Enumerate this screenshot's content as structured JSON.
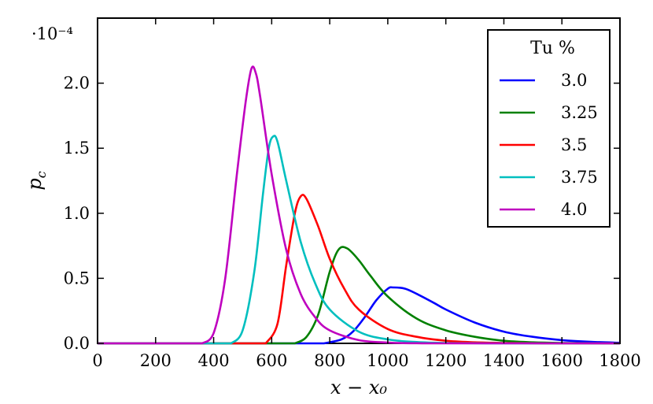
{
  "chart_data": {
    "type": "line",
    "xlabel": "x − x₀",
    "ylabel": "p_c",
    "y_scale_label": "·10⁻⁴",
    "xlim": [
      0,
      1800
    ],
    "ylim": [
      0,
      2.5
    ],
    "xticks": [
      0,
      200,
      400,
      600,
      800,
      1000,
      1200,
      1400,
      1600,
      1800
    ],
    "yticks": [
      0.0,
      0.5,
      1.0,
      1.5,
      2.0
    ],
    "ytick_labels": [
      "0.0",
      "0.5",
      "1.0",
      "1.5",
      "2.0"
    ],
    "grid": false,
    "legend": {
      "title": "Tu %",
      "placement": "top-right"
    },
    "series": [
      {
        "name": "3.0",
        "color": "#0000ff",
        "x": [
          780,
          840,
          880,
          920,
          960,
          1000,
          1020,
          1060,
          1100,
          1160,
          1200,
          1300,
          1400,
          1500,
          1600,
          1700,
          1800
        ],
        "y": [
          0.0,
          0.03,
          0.09,
          0.2,
          0.33,
          0.42,
          0.43,
          0.42,
          0.38,
          0.31,
          0.26,
          0.16,
          0.09,
          0.05,
          0.025,
          0.012,
          0.005
        ]
      },
      {
        "name": "3.25",
        "color": "#008000",
        "x": [
          680,
          720,
          760,
          800,
          830,
          860,
          900,
          940,
          1000,
          1100,
          1200,
          1300,
          1400,
          1500,
          1600,
          1700,
          1800
        ],
        "y": [
          0.0,
          0.05,
          0.22,
          0.55,
          0.72,
          0.73,
          0.64,
          0.52,
          0.36,
          0.19,
          0.1,
          0.05,
          0.02,
          0.008,
          0.003,
          0.001,
          0.0
        ]
      },
      {
        "name": "3.5",
        "color": "#ff0000",
        "x": [
          580,
          620,
          650,
          680,
          700,
          720,
          760,
          800,
          850,
          900,
          1000,
          1100,
          1200,
          1300,
          1400,
          1500,
          1600
        ],
        "y": [
          0.0,
          0.15,
          0.6,
          1.0,
          1.13,
          1.11,
          0.9,
          0.65,
          0.42,
          0.26,
          0.11,
          0.05,
          0.02,
          0.008,
          0.003,
          0.001,
          0.0
        ]
      },
      {
        "name": "3.75",
        "color": "#00bfbf",
        "x": [
          460,
          500,
          540,
          570,
          590,
          605,
          620,
          650,
          700,
          750,
          800,
          900,
          1000,
          1100,
          1200,
          1300,
          1400
        ],
        "y": [
          0.0,
          0.1,
          0.55,
          1.15,
          1.5,
          1.59,
          1.55,
          1.25,
          0.78,
          0.46,
          0.26,
          0.09,
          0.03,
          0.01,
          0.003,
          0.001,
          0.0
        ]
      },
      {
        "name": "4.0",
        "color": "#bf00bf",
        "x": [
          360,
          400,
          440,
          480,
          510,
          530,
          545,
          560,
          600,
          650,
          700,
          750,
          800,
          900,
          1000,
          1100,
          1200
        ],
        "y": [
          0.0,
          0.08,
          0.5,
          1.3,
          1.85,
          2.11,
          2.08,
          1.9,
          1.3,
          0.72,
          0.38,
          0.2,
          0.1,
          0.025,
          0.006,
          0.001,
          0.0
        ]
      }
    ]
  }
}
